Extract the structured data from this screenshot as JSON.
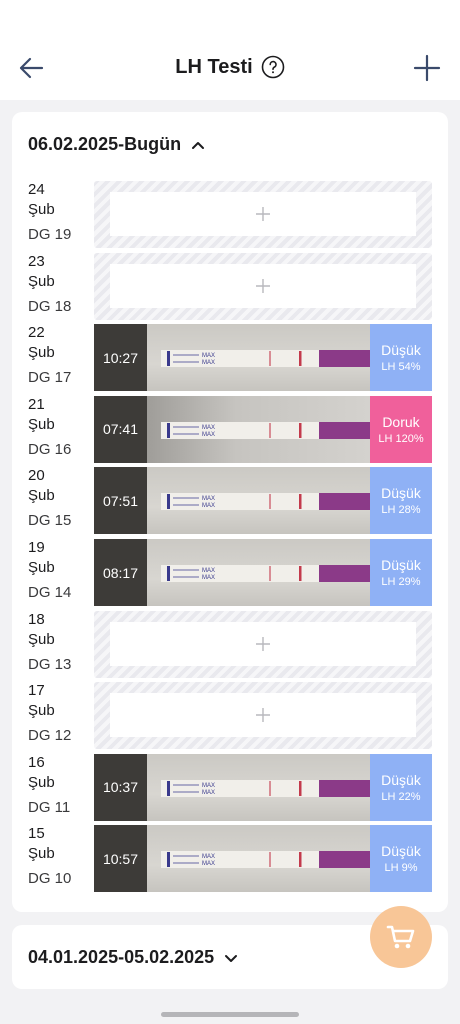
{
  "header": {
    "title": "LH Testi",
    "icons": {
      "back": "arrow-left-icon",
      "help": "question-circle-icon",
      "add": "plus-icon"
    }
  },
  "current_range": {
    "label": "06.02.2025-Bugün",
    "expanded": true,
    "days": [
      {
        "day": "24",
        "month": "Şub",
        "dg": "DG 19",
        "has_test": false
      },
      {
        "day": "23",
        "month": "Şub",
        "dg": "DG 18",
        "has_test": false
      },
      {
        "day": "22",
        "month": "Şub",
        "dg": "DG 17",
        "has_test": true,
        "time": "10:27",
        "result": "Düşük",
        "lh": "LH 54%"
      },
      {
        "day": "21",
        "month": "Şub",
        "dg": "DG 16",
        "has_test": true,
        "time": "07:41",
        "result": "Doruk",
        "lh": "LH 120%"
      },
      {
        "day": "20",
        "month": "Şub",
        "dg": "DG 15",
        "has_test": true,
        "time": "07:51",
        "result": "Düşük",
        "lh": "LH 28%"
      },
      {
        "day": "19",
        "month": "Şub",
        "dg": "DG 14",
        "has_test": true,
        "time": "08:17",
        "result": "Düşük",
        "lh": "LH 29%"
      },
      {
        "day": "18",
        "month": "Şub",
        "dg": "DG 13",
        "has_test": false
      },
      {
        "day": "17",
        "month": "Şub",
        "dg": "DG 12",
        "has_test": false
      },
      {
        "day": "16",
        "month": "Şub",
        "dg": "DG 11",
        "has_test": true,
        "time": "10:37",
        "result": "Düşük",
        "lh": "LH 22%"
      },
      {
        "day": "15",
        "month": "Şub",
        "dg": "DG 10",
        "has_test": true,
        "time": "10:57",
        "result": "Düşük",
        "lh": "LH 9%"
      }
    ]
  },
  "previous_range": {
    "label": "04.01.2025-05.02.2025",
    "expanded": false
  },
  "strip_text": {
    "max": "MAX"
  },
  "colors": {
    "low": "#8fb1f5",
    "peak": "#f0609b",
    "fab": "#f8c697",
    "strip_end": "#8b3a88",
    "line": "#c33a4c"
  }
}
